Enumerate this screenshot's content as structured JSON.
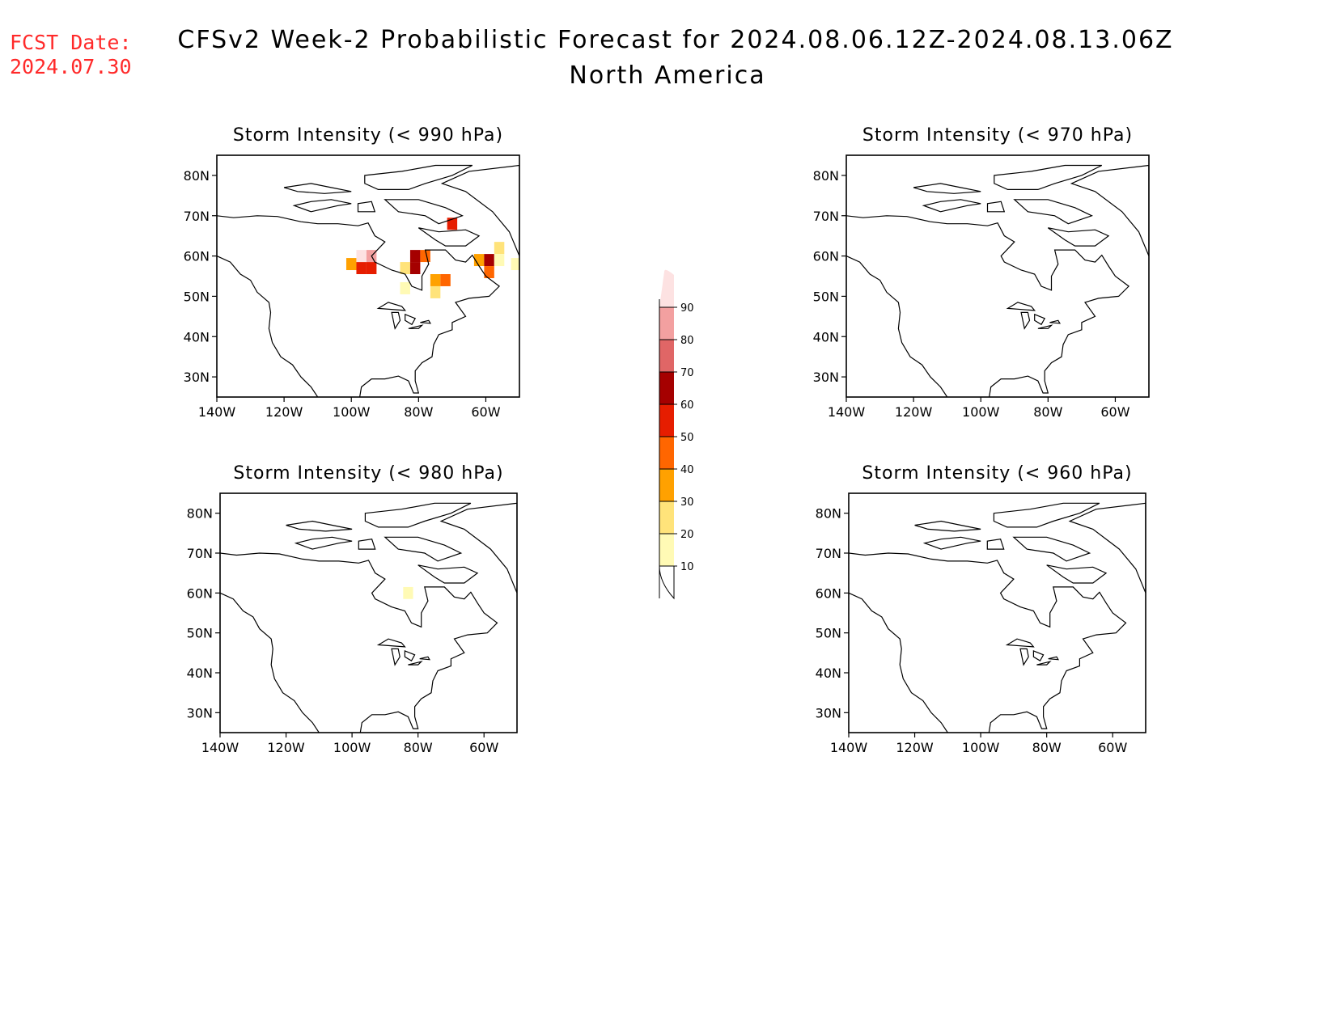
{
  "fcst_date_label": "FCST Date:",
  "fcst_date_value": "2024.07.30",
  "title_line1": "CFSv2 Week-2 Probabilistic Forecast for 2024.08.06.12Z-2024.08.13.06Z",
  "title_line2": "North America",
  "chart_data": {
    "type": "heatmap",
    "panels": [
      {
        "id": "p990",
        "title": "Storm Intensity (< 990 hPa)",
        "cells": [
          {
            "lon": -100,
            "lat": 58,
            "p": 35
          },
          {
            "lon": -97,
            "lat": 57,
            "p": 55
          },
          {
            "lon": -94,
            "lat": 57,
            "p": 50
          },
          {
            "lon": -97,
            "lat": 60,
            "p": 92
          },
          {
            "lon": -94,
            "lat": 60,
            "p": 88
          },
          {
            "lon": -81,
            "lat": 60,
            "p": 65
          },
          {
            "lon": -78,
            "lat": 60,
            "p": 45
          },
          {
            "lon": -84,
            "lat": 57,
            "p": 25
          },
          {
            "lon": -81,
            "lat": 57,
            "p": 60
          },
          {
            "lon": -75,
            "lat": 54,
            "p": 35
          },
          {
            "lon": -72,
            "lat": 54,
            "p": 45
          },
          {
            "lon": -75,
            "lat": 51,
            "p": 25
          },
          {
            "lon": -70,
            "lat": 68,
            "p": 55
          },
          {
            "lon": -62,
            "lat": 59,
            "p": 35
          },
          {
            "lon": -59,
            "lat": 59,
            "p": 60
          },
          {
            "lon": -59,
            "lat": 56,
            "p": 45
          },
          {
            "lon": -56,
            "lat": 62,
            "p": 25
          },
          {
            "lon": -56,
            "lat": 59,
            "p": 15
          },
          {
            "lon": -51,
            "lat": 58,
            "p": 15
          },
          {
            "lon": -84,
            "lat": 52,
            "p": 15
          }
        ]
      },
      {
        "id": "p970",
        "title": "Storm Intensity (< 970 hPa)",
        "cells": []
      },
      {
        "id": "p980",
        "title": "Storm Intensity (< 980 hPa)",
        "cells": [
          {
            "lon": -83,
            "lat": 60,
            "p": 12
          }
        ]
      },
      {
        "id": "p960",
        "title": "Storm Intensity (< 960 hPa)",
        "cells": []
      }
    ],
    "lon_range": [
      -140,
      -50
    ],
    "lat_range": [
      25,
      85
    ],
    "xticks": [
      "140W",
      "120W",
      "100W",
      "80W",
      "60W"
    ],
    "yticks": [
      "30N",
      "40N",
      "50N",
      "60N",
      "70N",
      "80N"
    ],
    "colorbar": {
      "levels": [
        "10",
        "20",
        "30",
        "40",
        "50",
        "60",
        "70",
        "80",
        "90"
      ],
      "colors": [
        "#fffab5",
        "#ffe37a",
        "#ffa100",
        "#ff6600",
        "#e61d00",
        "#a50000",
        "#e06666",
        "#f3a0a0",
        "#fde2e2"
      ]
    }
  }
}
